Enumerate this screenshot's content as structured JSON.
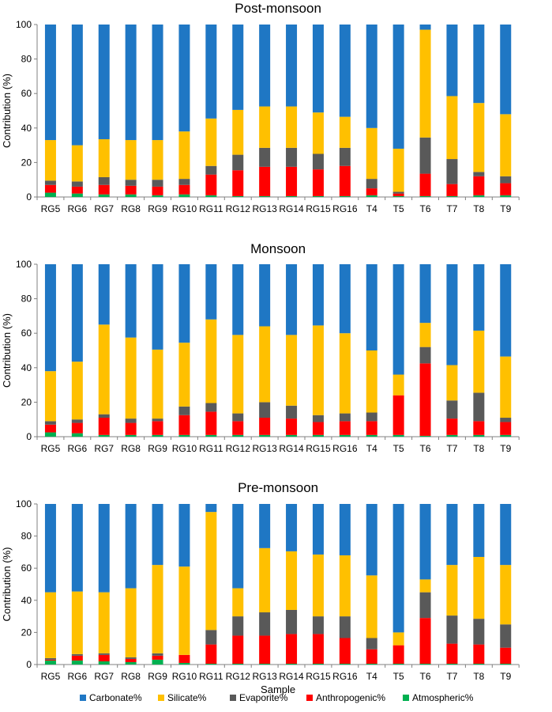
{
  "legend": [
    {
      "key": "carbonate",
      "label": "Carbonate%",
      "color": "#1F77C4"
    },
    {
      "key": "silicate",
      "label": "Silicate%",
      "color": "#FFC000"
    },
    {
      "key": "evaporite",
      "label": "Evaporite%",
      "color": "#595959"
    },
    {
      "key": "anthropogenic",
      "label": "Anthropogenic%",
      "color": "#FF0000"
    },
    {
      "key": "atmospheric",
      "label": "Atmospheric%",
      "color": "#00B050"
    }
  ],
  "chart_data": [
    {
      "type": "bar",
      "stacked": true,
      "title": "Post-monsoon",
      "ylabel": "Contribution (%)",
      "xlabel": "",
      "ylim": [
        0,
        100
      ],
      "yticks": [
        0,
        20,
        40,
        60,
        80,
        100
      ],
      "categories": [
        "RG5",
        "RG6",
        "RG7",
        "RG8",
        "RG9",
        "RG10",
        "RG11",
        "RG12",
        "RG13",
        "RG14",
        "RG15",
        "RG16",
        "T4",
        "T5",
        "T6",
        "T7",
        "T8",
        "T9"
      ],
      "series": [
        {
          "name": "Atmospheric%",
          "values": [
            2.5,
            2,
            1.5,
            1.5,
            1,
            1.5,
            1,
            0.5,
            0.5,
            0.5,
            0.5,
            0.5,
            1,
            0.5,
            0.5,
            0.5,
            1,
            1
          ]
        },
        {
          "name": "Anthropogenic%",
          "values": [
            4.5,
            4,
            5.5,
            5,
            5,
            5.5,
            12,
            15,
            17,
            17,
            15.5,
            17.5,
            4,
            1.5,
            13,
            7,
            11,
            7
          ]
        },
        {
          "name": "Evaporite%",
          "values": [
            2.5,
            3,
            4.5,
            3.5,
            4,
            3.5,
            5,
            9,
            11,
            11,
            9,
            10.5,
            5.5,
            1,
            21,
            14.5,
            2.5,
            4
          ]
        },
        {
          "name": "Silicate%",
          "values": [
            23.5,
            21,
            22,
            23,
            23,
            27.5,
            27.5,
            26,
            24,
            24,
            24,
            18,
            29.5,
            25,
            62.5,
            36.5,
            40,
            36
          ]
        },
        {
          "name": "Carbonate%",
          "values": [
            67,
            70,
            66.5,
            67,
            67,
            62,
            54.5,
            49.5,
            47.5,
            47.5,
            51,
            53.5,
            60,
            72,
            3,
            41.5,
            45.5,
            52
          ]
        }
      ]
    },
    {
      "type": "bar",
      "stacked": true,
      "title": "Monsoon",
      "ylabel": "Contribution (%)",
      "xlabel": "",
      "ylim": [
        0,
        100
      ],
      "yticks": [
        0,
        20,
        40,
        60,
        80,
        100
      ],
      "categories": [
        "RG5",
        "RG6",
        "RG7",
        "RG8",
        "RG9",
        "RG10",
        "RG11",
        "RG12",
        "RG13",
        "RG14",
        "RG15",
        "RG16",
        "T4",
        "T5",
        "T6",
        "T7",
        "T8",
        "T9"
      ],
      "series": [
        {
          "name": "Atmospheric%",
          "values": [
            2.5,
            2,
            1,
            1,
            1,
            1,
            1,
            1,
            1,
            1,
            1,
            1,
            1,
            1,
            0.5,
            1,
            1,
            1
          ]
        },
        {
          "name": "Anthropogenic%",
          "values": [
            4.5,
            6,
            10,
            7,
            8,
            11.5,
            13.5,
            8,
            10,
            9.5,
            7.5,
            8,
            8,
            23,
            42,
            9.5,
            8,
            7.5
          ]
        },
        {
          "name": "Evaporite%",
          "values": [
            2,
            2,
            2,
            2.5,
            1.5,
            5,
            5,
            4.5,
            9,
            7.5,
            4,
            4.5,
            5,
            0,
            9.5,
            10.5,
            16.5,
            2.5
          ]
        },
        {
          "name": "Silicate%",
          "values": [
            29,
            33.5,
            52,
            47,
            40,
            37,
            48.5,
            45.5,
            44,
            41,
            52,
            46.5,
            36,
            12,
            14,
            20.5,
            36,
            35.5
          ]
        },
        {
          "name": "Carbonate%",
          "values": [
            62,
            56.5,
            35,
            42.5,
            49.5,
            45.5,
            32,
            41,
            36,
            41,
            35.5,
            40,
            50,
            64,
            34,
            58.5,
            38.5,
            53.5
          ]
        }
      ]
    },
    {
      "type": "bar",
      "stacked": true,
      "title": "Pre-monsoon",
      "ylabel": "Contribution (%)",
      "xlabel": "Sample",
      "ylim": [
        0,
        100
      ],
      "yticks": [
        0,
        20,
        40,
        60,
        80,
        100
      ],
      "categories": [
        "RG5",
        "RG6",
        "RG7",
        "RG8",
        "RG9",
        "RG10",
        "RG11",
        "RG12",
        "RG13",
        "RG14",
        "RG15",
        "RG16",
        "T4",
        "T5",
        "T6",
        "T7",
        "T8",
        "T9"
      ],
      "series": [
        {
          "name": "Atmospheric%",
          "values": [
            2.5,
            2.5,
            2,
            1.5,
            3,
            1,
            0.5,
            0.5,
            0.5,
            0.5,
            0.5,
            0.5,
            0.5,
            0.5,
            0.5,
            0.5,
            0.5,
            0.5
          ]
        },
        {
          "name": "Anthropogenic%",
          "values": [
            0.5,
            3,
            4,
            2,
            2.5,
            5,
            12,
            17.5,
            17.5,
            18.5,
            18.5,
            16,
            9,
            11.5,
            28.5,
            12.5,
            12,
            10
          ]
        },
        {
          "name": "Evaporite%",
          "values": [
            1,
            1,
            1,
            1,
            1.5,
            0,
            9,
            12,
            14.5,
            15,
            11,
            13.5,
            7,
            0,
            16,
            17.5,
            16,
            14.5
          ]
        },
        {
          "name": "Silicate%",
          "values": [
            41,
            39,
            38,
            43,
            55,
            55,
            73.5,
            17.5,
            40,
            36.5,
            38.5,
            38,
            39,
            8,
            8,
            31.5,
            38.5,
            37
          ]
        },
        {
          "name": "Carbonate%",
          "values": [
            55,
            54.5,
            55,
            52.5,
            38,
            39,
            5,
            52.5,
            27.5,
            29.5,
            31.5,
            32,
            44.5,
            80,
            47,
            38,
            33,
            38
          ]
        }
      ]
    }
  ]
}
